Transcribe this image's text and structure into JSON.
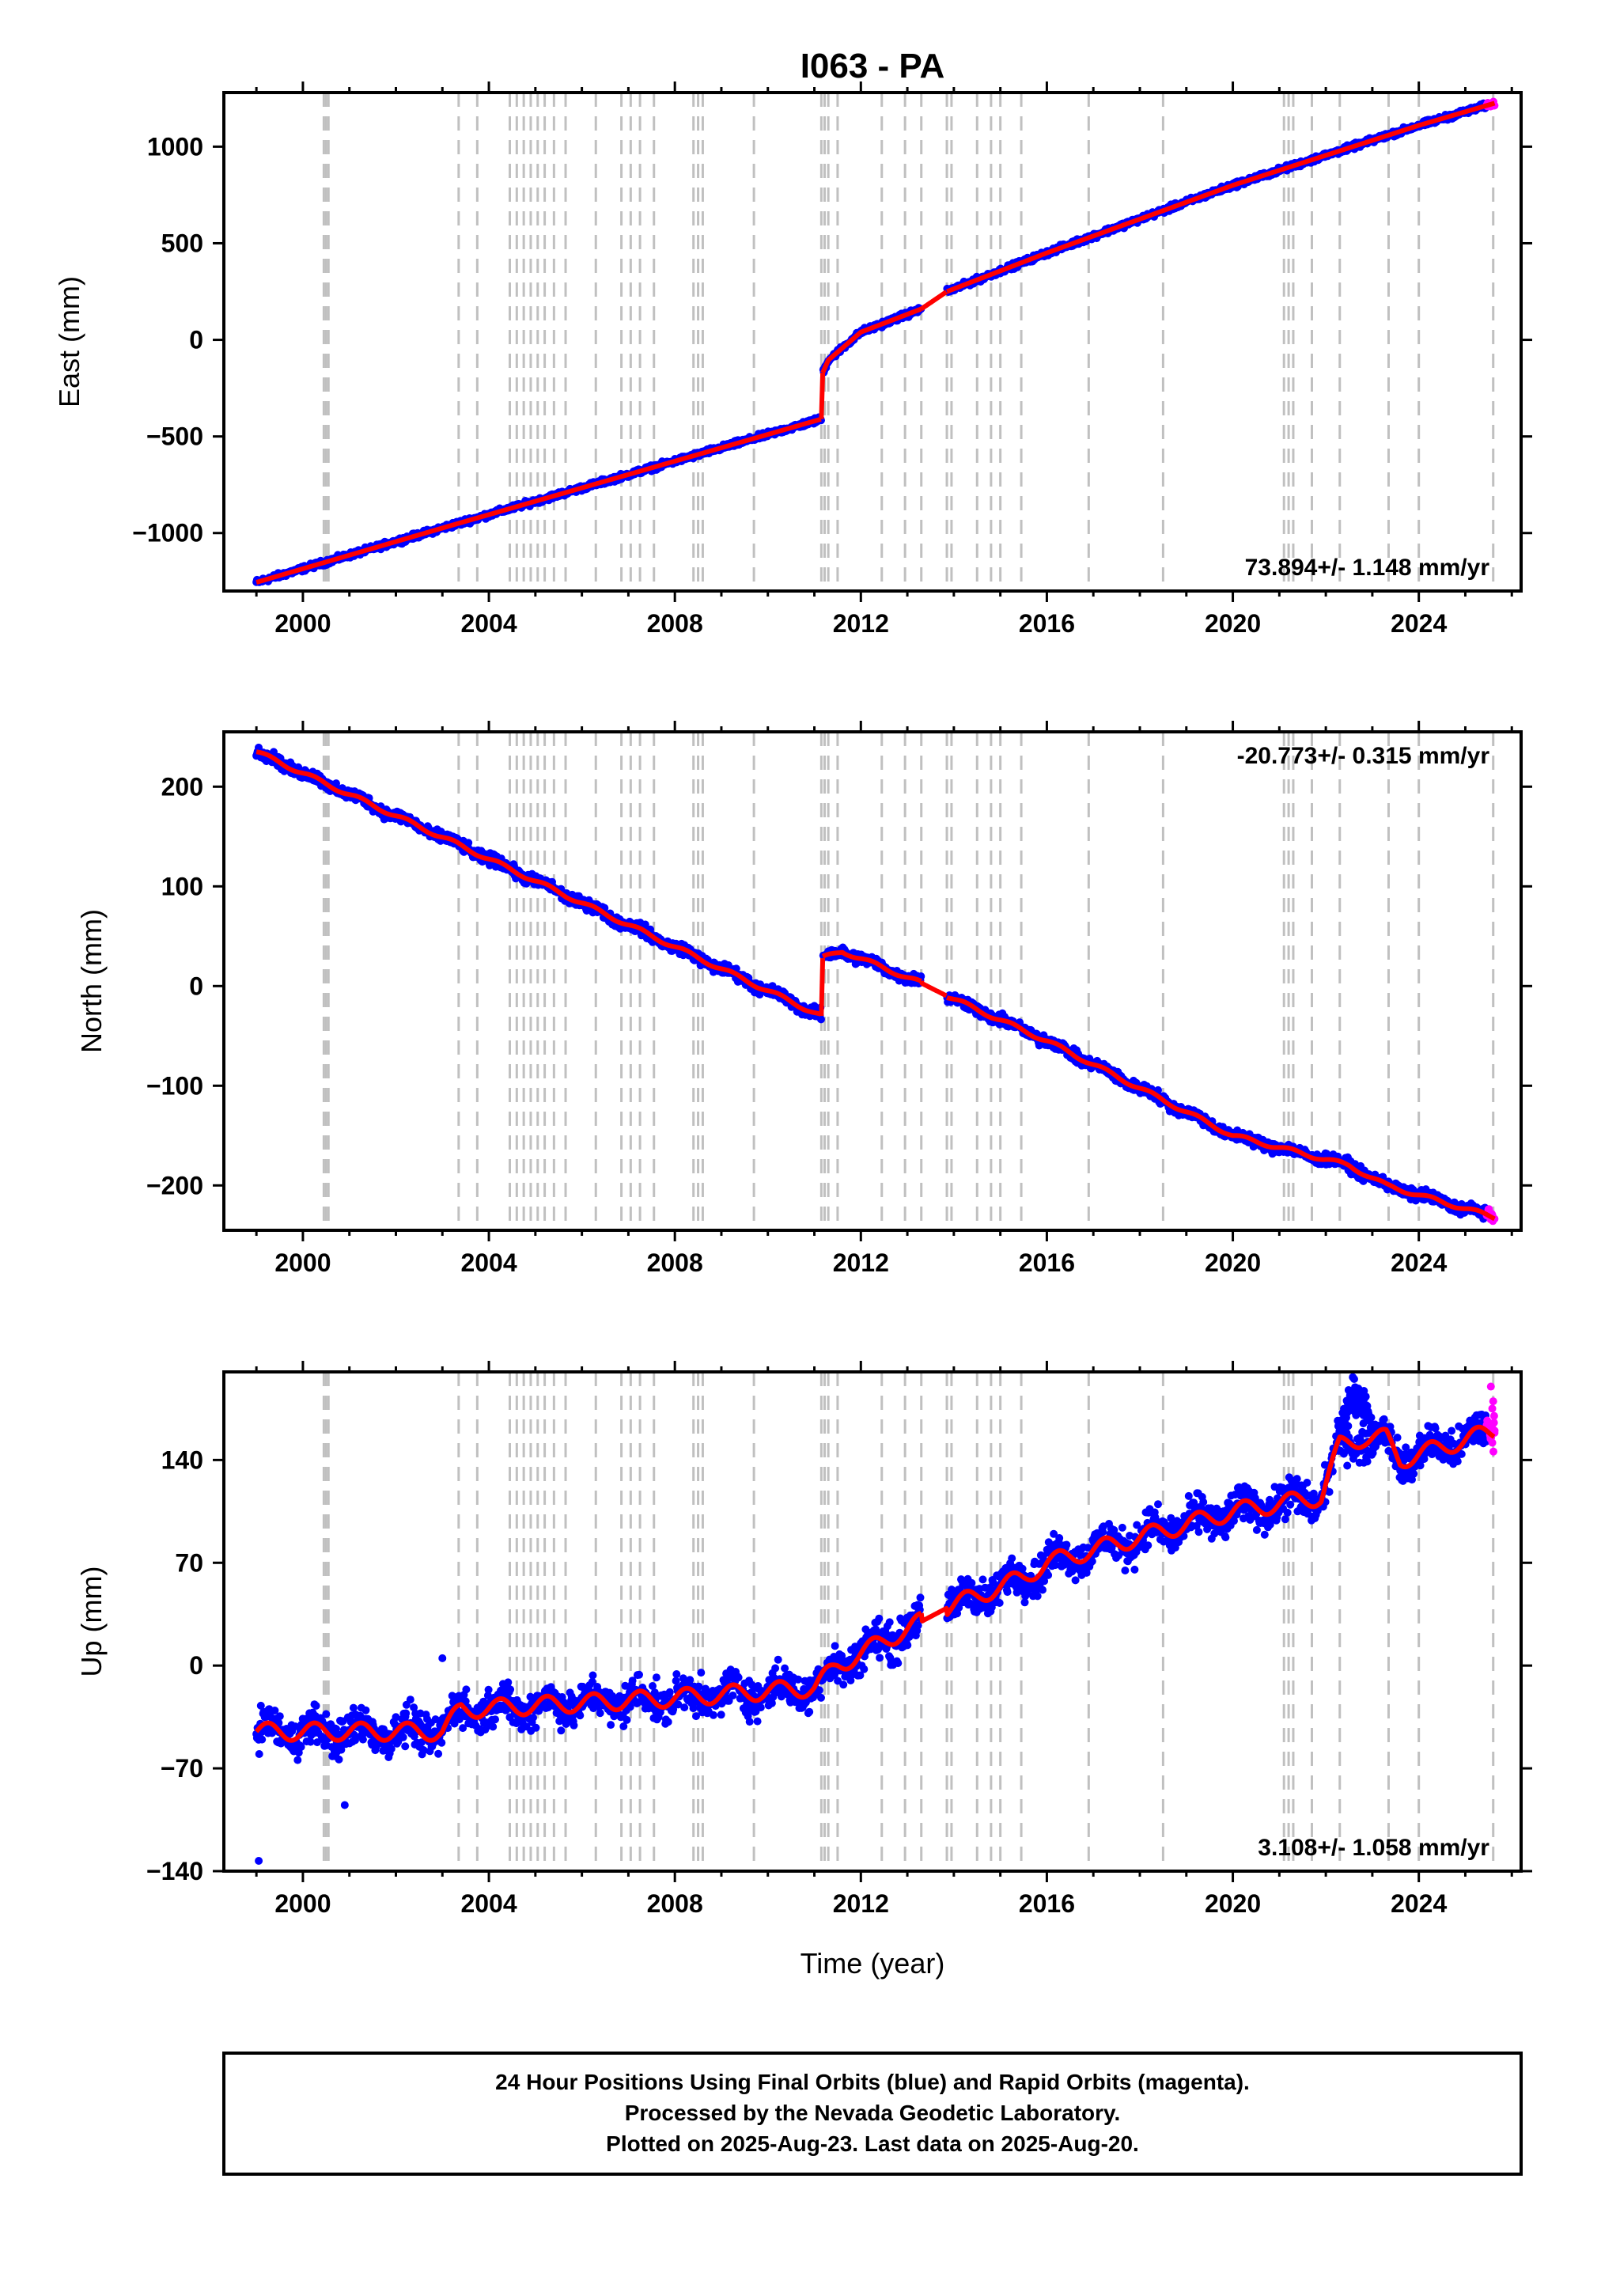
{
  "title": "I063 - PA",
  "colors": {
    "final_orbit": "#0000ff",
    "rapid_orbit": "#ff00ff",
    "model": "#ff0000",
    "event_line": "#c0c0c0",
    "frame": "#000000"
  },
  "xlabel": "Time (year)",
  "footer": {
    "line1": "24 Hour Positions Using Final Orbits (blue) and Rapid Orbits (magenta).",
    "line2": "Processed by the Nevada Geodetic Laboratory.",
    "line3": "Plotted on 2025-Aug-23. Last data on 2025-Aug-20."
  },
  "chart_data": [
    {
      "type": "scatter",
      "component": "east",
      "ylabel": "East (mm)",
      "rate_text": "73.894+/- 1.148 mm/yr",
      "rate_position": "bottom-right",
      "xlim": [
        1998.3,
        2026.2
      ],
      "ylim": [
        -1300,
        1280
      ],
      "xticks": [
        2000,
        2004,
        2008,
        2012,
        2016,
        2020,
        2024
      ],
      "yticks": [
        -1000,
        -500,
        0,
        500,
        1000
      ],
      "ytick_labels": [
        "−1000",
        "−500",
        "0",
        "500",
        "1000"
      ],
      "data_range": [
        1999.0,
        2025.63
      ],
      "trend_segments": [
        {
          "x": [
            1999.0,
            2003.2,
            2011.15
          ],
          "y": [
            -1255,
            -960,
            -410
          ]
        },
        {
          "x": [
            2011.18,
            2011.3,
            2012.0,
            2013.3
          ],
          "y": [
            -170,
            -105,
            40,
            160
          ]
        },
        {
          "x": [
            2013.3,
            2013.85
          ],
          "y": [
            160,
            250
          ]
        },
        {
          "x": [
            2013.85,
            2016.0,
            2020.0,
            2024.0,
            2025.63
          ],
          "y": [
            250,
            450,
            800,
            1110,
            1225
          ]
        }
      ],
      "noise": 10
    },
    {
      "type": "scatter",
      "component": "north",
      "ylabel": "North (mm)",
      "rate_text": "-20.773+/- 0.315 mm/yr",
      "rate_position": "top-right",
      "xlim": [
        1998.3,
        2026.2
      ],
      "ylim": [
        -245,
        255
      ],
      "xticks": [
        2000,
        2004,
        2008,
        2012,
        2016,
        2020,
        2024
      ],
      "yticks": [
        -200,
        -100,
        0,
        100,
        200
      ],
      "ytick_labels": [
        "−200",
        "−100",
        "0",
        "100",
        "200"
      ],
      "data_range": [
        1999.0,
        2025.63
      ],
      "trend_segments": [
        {
          "x": [
            1999.0,
            2003.2,
            2011.15
          ],
          "y": [
            235,
            145,
            -30
          ]
        },
        {
          "x": [
            2011.18,
            2011.6,
            2013.3
          ],
          "y": [
            28,
            35,
            3
          ]
        },
        {
          "x": [
            2013.3,
            2013.85
          ],
          "y": [
            3,
            -10
          ]
        },
        {
          "x": [
            2013.85,
            2016.0,
            2020.0,
            2022.5,
            2023.3,
            2025.63
          ],
          "y": [
            -10,
            -55,
            -150,
            -180,
            -200,
            -232
          ]
        }
      ],
      "noise": 4
    },
    {
      "type": "scatter",
      "component": "up",
      "ylabel": "Up (mm)",
      "rate_text": "3.108+/- 1.058 mm/yr",
      "rate_position": "bottom-right",
      "xlim": [
        1998.3,
        2026.2
      ],
      "ylim": [
        -140,
        200
      ],
      "xticks": [
        2000,
        2004,
        2008,
        2012,
        2016,
        2020,
        2024
      ],
      "yticks": [
        -140,
        -70,
        0,
        70,
        140
      ],
      "ytick_labels": [
        "−140",
        "−70",
        "0",
        "70",
        "140"
      ],
      "data_range": [
        1999.0,
        2025.63
      ],
      "trend_segments": [
        {
          "x": [
            1999.0,
            2003.0,
            2003.4,
            2008.0,
            2011.0,
            2011.5,
            2013.3
          ],
          "y": [
            -45,
            -45,
            -30,
            -22,
            -15,
            0,
            30
          ]
        },
        {
          "x": [
            2013.3,
            2013.9
          ],
          "y": [
            30,
            40
          ]
        },
        {
          "x": [
            2013.9,
            2015.5,
            2016.0,
            2020.0,
            2021.9,
            2022.3,
            2022.8,
            2023.3,
            2023.6,
            2025.63
          ],
          "y": [
            40,
            60,
            70,
            105,
            115,
            150,
            155,
            155,
            140,
            160
          ]
        }
      ],
      "noise": 9,
      "outliers": [
        [
          1999.05,
          -133
        ],
        [
          2002.2,
          -55
        ],
        [
          2003.0,
          5
        ],
        [
          2000.9,
          -95
        ]
      ]
    }
  ],
  "event_years": [
    2000.45,
    2000.5,
    2000.55,
    2003.35,
    2003.75,
    2004.45,
    2004.6,
    2004.75,
    2004.9,
    2005.05,
    2005.2,
    2005.4,
    2005.65,
    2006.3,
    2006.85,
    2007.05,
    2007.25,
    2007.55,
    2008.4,
    2008.5,
    2008.6,
    2009.7,
    2011.15,
    2011.22,
    2011.3,
    2011.5,
    2012.45,
    2012.95,
    2013.3,
    2013.85,
    2013.95,
    2014.5,
    2014.8,
    2015.0,
    2015.45,
    2016.9,
    2018.5,
    2021.1,
    2021.2,
    2021.3,
    2021.7,
    2022.3,
    2023.35,
    2024.0,
    2025.6
  ]
}
